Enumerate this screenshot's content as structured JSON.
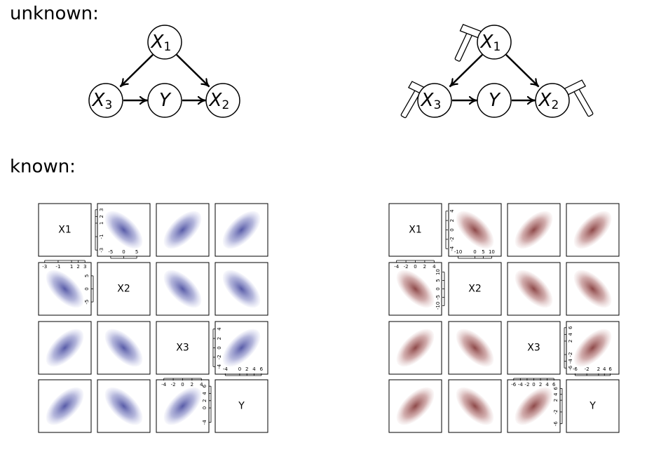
{
  "unknown_label": "unknown:",
  "known_label": "known:",
  "dags": [
    {
      "nodes": [
        {
          "name": "X",
          "sub": "1"
        },
        {
          "name": "X",
          "sub": "3"
        },
        {
          "name": "Y"
        },
        {
          "name": "X",
          "sub": "2"
        }
      ]
    },
    {
      "nodes": [
        {
          "name": "X",
          "sub": "1"
        },
        {
          "name": "X",
          "sub": "3"
        },
        {
          "name": "Y"
        },
        {
          "name": "X",
          "sub": "2"
        }
      ]
    }
  ],
  "matrices": [
    {
      "labels": [
        "X1",
        "X2",
        "X3",
        "Y"
      ],
      "axes": [
        {
          "side": "top",
          "panel": 1,
          "lim": [
            -9,
            9
          ],
          "ticks": [
            -5,
            0,
            5
          ]
        },
        {
          "side": "top",
          "panel": 3,
          "lim": [
            -6,
            7
          ],
          "ticks": [
            -4,
            0,
            2,
            4,
            6
          ]
        },
        {
          "side": "right",
          "panel": 0,
          "lim": [
            -3.5,
            3.5
          ],
          "ticks": [
            -3,
            -1,
            1,
            2,
            3
          ]
        },
        {
          "side": "left",
          "panel": 1,
          "lim": [
            -9,
            9
          ],
          "ticks": [
            -5,
            0,
            5
          ]
        },
        {
          "side": "right",
          "panel": 2,
          "lim": [
            -5,
            5
          ],
          "ticks": [
            -4,
            -2,
            0,
            2,
            4
          ]
        },
        {
          "side": "left",
          "panel": 3,
          "lim": [
            -6,
            7
          ],
          "ticks": [
            -4,
            0,
            2,
            4,
            6
          ]
        },
        {
          "side": "bottom",
          "panel": 0,
          "lim": [
            -3.5,
            3.5
          ],
          "ticks": [
            -3,
            -1,
            1,
            2,
            3
          ]
        },
        {
          "side": "bottom",
          "panel": 2,
          "lim": [
            -5,
            5
          ],
          "ticks": [
            -4,
            -2,
            0,
            2,
            4
          ]
        }
      ]
    },
    {
      "labels": [
        "X1",
        "X2",
        "X3",
        "Y"
      ],
      "axes": [
        {
          "side": "top",
          "panel": 1,
          "lim": [
            -14,
            14
          ],
          "ticks": [
            -10,
            0,
            5,
            10
          ]
        },
        {
          "side": "top",
          "panel": 3,
          "lim": [
            -8,
            8
          ],
          "ticks": [
            -6,
            -2,
            2,
            4,
            6
          ]
        },
        {
          "side": "right",
          "panel": 0,
          "lim": [
            -5,
            5
          ],
          "ticks": [
            -4,
            -2,
            0,
            2,
            4
          ]
        },
        {
          "side": "left",
          "panel": 1,
          "lim": [
            -14,
            14
          ],
          "ticks": [
            -10,
            -5,
            0,
            5,
            10
          ]
        },
        {
          "side": "right",
          "panel": 2,
          "lim": [
            -7,
            7
          ],
          "ticks": [
            -6,
            -4,
            -2,
            2,
            4,
            6
          ]
        },
        {
          "side": "left",
          "panel": 3,
          "lim": [
            -8,
            8
          ],
          "ticks": [
            -6,
            -2,
            2,
            4,
            6
          ]
        },
        {
          "side": "bottom",
          "panel": 0,
          "lim": [
            -5,
            5
          ],
          "ticks": [
            -4,
            -2,
            0,
            2,
            4
          ]
        },
        {
          "side": "bottom",
          "panel": 2,
          "lim": [
            -7,
            7
          ],
          "ticks": [
            -6,
            -4,
            -2,
            0,
            2,
            4,
            6
          ]
        }
      ]
    }
  ]
}
